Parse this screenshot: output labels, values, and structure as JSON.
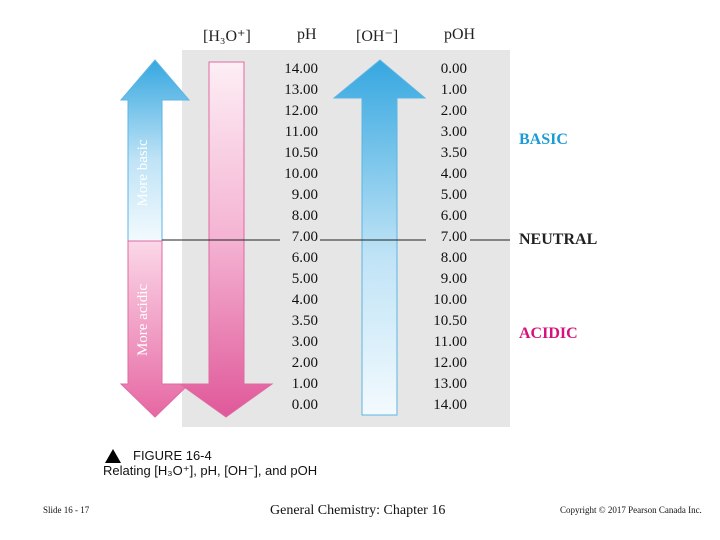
{
  "headers": {
    "h3o": "[H₃O⁺]",
    "ph": "pH",
    "oh": "[OH⁻]",
    "poh": "pOH"
  },
  "ph_values": [
    "14.00",
    "13.00",
    "12.00",
    "11.00",
    "10.50",
    "10.00",
    "9.00",
    "8.00",
    "7.00",
    "6.00",
    "5.00",
    "4.00",
    "3.50",
    "3.00",
    "2.00",
    "1.00",
    "0.00"
  ],
  "poh_values": [
    "0.00",
    "1.00",
    "2.00",
    "3.00",
    "3.50",
    "4.00",
    "5.00",
    "6.00",
    "7.00",
    "8.00",
    "9.00",
    "10.00",
    "10.50",
    "11.00",
    "12.00",
    "13.00",
    "14.00"
  ],
  "arrow_labels": {
    "basic": "More basic",
    "acidic": "More acidic"
  },
  "zones": {
    "basic": "BASIC",
    "neutral": "NEUTRAL",
    "acidic": "ACIDIC"
  },
  "caption": {
    "figure": "FIGURE 16-4",
    "title": "Relating [H₃O⁺], pH, [OH⁻], and pOH"
  },
  "footer": {
    "slide": "Slide 16 - 17",
    "course": "General Chemistry: Chapter 16",
    "copyright": "Copyright © 2017 Pearson Canada Inc."
  },
  "colors": {
    "basic": "#1a9bd7",
    "acidic": "#d6127a",
    "neutral": "#222222",
    "panel": "#e6e6e6"
  }
}
